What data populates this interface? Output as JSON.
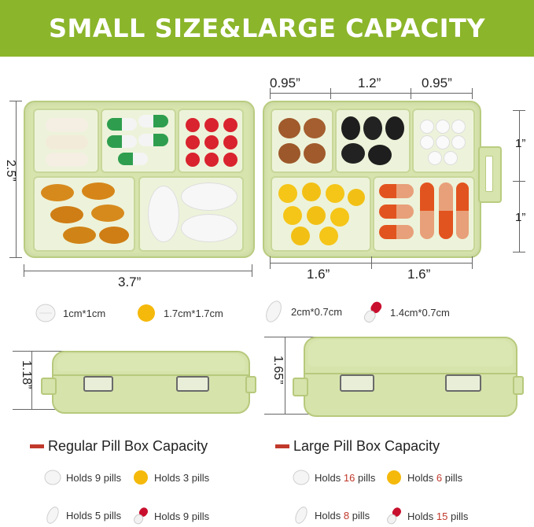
{
  "banner": {
    "title": "SMALL SIZE&LARGE CAPACITY"
  },
  "dimensions": {
    "top_left": "0.95”",
    "top_mid": "1.2”",
    "top_right": "0.95”",
    "left_height": "2.5”",
    "right_top": "1”",
    "right_bottom": "1”",
    "bottom_width": "3.7”",
    "bottom_left": "1.6”",
    "bottom_right": "1.6”",
    "regular_height": "1.18”",
    "large_height": "1.65”"
  },
  "legend": [
    {
      "icon": "round-white-tablet-icon",
      "label": "1cm*1cm"
    },
    {
      "icon": "round-yellow-pill-icon",
      "label": "1.7cm*1.7cm"
    },
    {
      "icon": "oval-white-tablet-icon",
      "label": "2cm*0.7cm"
    },
    {
      "icon": "red-white-capsule-icon",
      "label": "1.4cm*0.7cm"
    }
  ],
  "regular": {
    "title": "Regular Pill Box Capacity",
    "rows": [
      {
        "prefix": "Holds",
        "count": "9",
        "suffix": "pills"
      },
      {
        "prefix": "Holds",
        "count": "3",
        "suffix": "pills"
      },
      {
        "prefix": "Holds",
        "count": "5",
        "suffix": "pills"
      },
      {
        "prefix": "Holds",
        "count": "9",
        "suffix": "pills"
      }
    ]
  },
  "large": {
    "title": "Large Pill Box Capacity",
    "rows": [
      {
        "prefix": "Holds",
        "count": "16",
        "suffix": "pills"
      },
      {
        "prefix": "Holds",
        "count": "6",
        "suffix": "pills"
      },
      {
        "prefix": "Holds",
        "count": "8",
        "suffix": "pills"
      },
      {
        "prefix": "Holds",
        "count": "15",
        "suffix": "pills"
      }
    ]
  }
}
